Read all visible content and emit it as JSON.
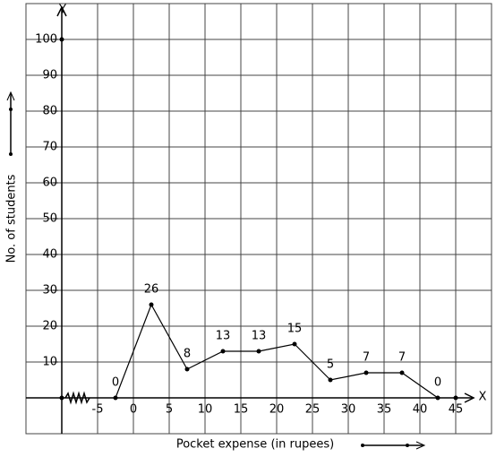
{
  "chart_data": {
    "type": "line",
    "xlabel": "Pocket expense (in rupees)",
    "ylabel": "No. of students",
    "x_axis_name": "X",
    "y_axis_name": "Y",
    "x": [
      -2.5,
      2.5,
      7.5,
      12.5,
      17.5,
      22.5,
      27.5,
      32.5,
      37.5,
      42.5
    ],
    "values": [
      0,
      26,
      8,
      13,
      13,
      15,
      5,
      7,
      7,
      0
    ],
    "color": "#000000",
    "xlim": [
      -15,
      50
    ],
    "ylim": [
      -10,
      110
    ],
    "xticks": [
      -5,
      0,
      5,
      10,
      15,
      20,
      25,
      30,
      35,
      40,
      45
    ],
    "yticks": [
      10,
      20,
      30,
      40,
      50,
      60,
      70,
      80,
      90,
      100
    ],
    "grid": true
  }
}
